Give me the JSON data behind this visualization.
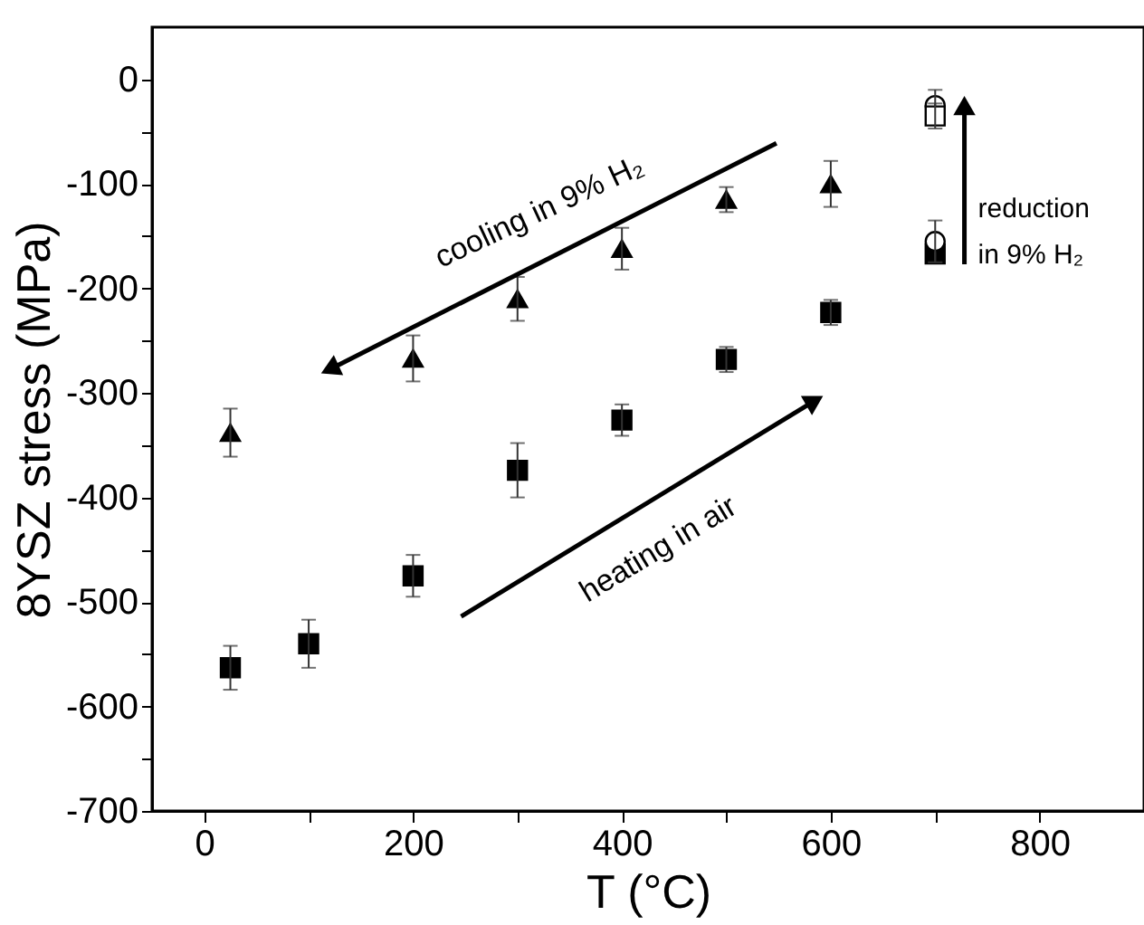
{
  "chart_data": {
    "type": "scatter",
    "xlabel": "T (°C)",
    "ylabel": "8YSZ stress (MPa)",
    "xlim": [
      -50,
      900
    ],
    "xticks": [
      0,
      {
        "value": 100,
        "label": null
      },
      200,
      {
        "value": 300,
        "label": null
      },
      400,
      {
        "value": 500,
        "label": null
      },
      600,
      {
        "value": 700,
        "label": null
      },
      800
    ],
    "ylim": [
      -700,
      50
    ],
    "yticks": [
      -700,
      {
        "value": -650,
        "label": null
      },
      -600,
      {
        "value": -550,
        "label": null
      },
      -500,
      {
        "value": -450,
        "label": null
      },
      -400,
      {
        "value": -350,
        "label": null
      },
      -300,
      {
        "value": -250,
        "label": null
      },
      -200,
      {
        "value": -150,
        "label": null
      },
      -100,
      {
        "value": -50,
        "label": null
      },
      0
    ],
    "grid": false,
    "series": [
      {
        "color": "#000000",
        "marker": "square",
        "x": [
          25,
          100,
          200,
          300,
          400,
          500,
          600
        ],
        "values": [
          -563,
          -540,
          -475,
          -374,
          -326,
          -268,
          -223
        ],
        "errors": [
          21,
          23,
          20,
          26,
          15,
          12,
          12
        ]
      },
      {
        "color": "#000000",
        "marker": "triangle",
        "x": [
          25,
          200,
          300,
          400,
          500,
          600
        ],
        "values": [
          -338,
          -267,
          -210,
          -162,
          -115,
          -100
        ],
        "errors": [
          23,
          22,
          21,
          20,
          12,
          22
        ]
      },
      {
        "color": "#000000",
        "marker": "square",
        "x": [
          700
        ],
        "values": [
          -167
        ],
        "errors": [
          8
        ]
      },
      {
        "color": "#ffffff",
        "marker": "circle",
        "x": [
          700,
          700
        ],
        "values": [
          -155,
          -25
        ],
        "errors": [
          20,
          15
        ]
      },
      {
        "color": "#ffffff",
        "marker": "square",
        "x": [
          700
        ],
        "values": [
          -35
        ],
        "errors": [
          12
        ]
      }
    ],
    "annotations": [
      "cooling in 9% H₂",
      "heating in air",
      "reduction",
      "in 9% H₂"
    ]
  }
}
